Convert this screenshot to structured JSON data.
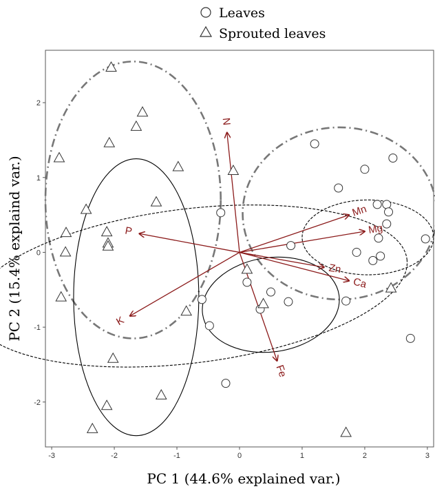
{
  "chart_data": {
    "type": "scatter",
    "subtype": "pca-biplot",
    "title": "",
    "xlabel": "PC 1 (44.6% explained var.)",
    "ylabel": "PC 2 (15.4% explaind var.)",
    "xlim": [
      -3.1,
      3.1
    ],
    "ylim": [
      -2.6,
      2.7
    ],
    "xticks": [
      -3,
      -2,
      -1,
      0,
      1,
      2,
      3
    ],
    "yticks": [
      -2,
      -1,
      0,
      1,
      2
    ],
    "grid": false,
    "legend_position": "top",
    "legend": [
      {
        "label": "Leaves",
        "marker": "circle"
      },
      {
        "label": "Sprouted leaves",
        "marker": "triangle"
      }
    ],
    "series": [
      {
        "name": "Leaves",
        "marker": "circle",
        "points": [
          [
            1.2,
            1.45
          ],
          [
            2.45,
            1.26
          ],
          [
            2.0,
            1.11
          ],
          [
            1.58,
            0.86
          ],
          [
            2.2,
            0.64
          ],
          [
            2.35,
            0.64
          ],
          [
            2.38,
            0.54
          ],
          [
            2.35,
            0.38
          ],
          [
            2.22,
            0.19
          ],
          [
            2.97,
            0.18
          ],
          [
            2.25,
            -0.05
          ],
          [
            2.13,
            -0.11
          ],
          [
            1.87,
            0.0
          ],
          [
            0.82,
            0.09
          ],
          [
            -0.3,
            0.53
          ],
          [
            0.12,
            -0.4
          ],
          [
            0.5,
            -0.53
          ],
          [
            0.33,
            -0.76
          ],
          [
            0.78,
            -0.66
          ],
          [
            1.7,
            -0.65
          ],
          [
            2.73,
            -1.15
          ],
          [
            -0.6,
            -0.63
          ],
          [
            -0.48,
            -0.98
          ],
          [
            -0.22,
            -1.75
          ]
        ]
      },
      {
        "name": "Sprouted leaves",
        "marker": "triangle",
        "points": [
          [
            -2.05,
            2.47
          ],
          [
            -1.55,
            1.87
          ],
          [
            -1.65,
            1.68
          ],
          [
            -2.08,
            1.46
          ],
          [
            -2.88,
            1.26
          ],
          [
            -0.98,
            1.14
          ],
          [
            -0.1,
            1.09
          ],
          [
            -1.33,
            0.67
          ],
          [
            -2.45,
            0.57
          ],
          [
            -2.77,
            0.26
          ],
          [
            -2.12,
            0.27
          ],
          [
            -2.1,
            0.12
          ],
          [
            -2.1,
            0.08
          ],
          [
            -2.78,
            0.0
          ],
          [
            0.12,
            -0.23
          ],
          [
            -2.85,
            -0.6
          ],
          [
            0.38,
            -0.69
          ],
          [
            -0.85,
            -0.79
          ],
          [
            2.42,
            -0.48
          ],
          [
            -2.02,
            -1.42
          ],
          [
            -1.25,
            -1.91
          ],
          [
            -2.12,
            -2.05
          ],
          [
            -2.35,
            -2.36
          ],
          [
            1.7,
            -2.41
          ]
        ]
      }
    ],
    "vectors": [
      {
        "label": "N",
        "x": -0.2,
        "y": 1.6
      },
      {
        "label": "Mn",
        "x": 1.75,
        "y": 0.5
      },
      {
        "label": "Mg",
        "x": 2.0,
        "y": 0.28
      },
      {
        "label": "P",
        "x": -1.6,
        "y": 0.25
      },
      {
        "label": "Zn",
        "x": 1.35,
        "y": -0.2
      },
      {
        "label": "Ca",
        "x": 1.75,
        "y": -0.38
      },
      {
        "label": "K",
        "x": -1.75,
        "y": -0.85
      },
      {
        "label": "Fe",
        "x": 0.6,
        "y": -1.45
      }
    ],
    "ellipses": [
      {
        "group": "Sprouted leaves",
        "style": "dashdot",
        "cx": -1.7,
        "cy": 0.7,
        "rx": 1.4,
        "ry": 1.85,
        "angle": 0
      },
      {
        "group": "Leaves",
        "style": "dashdot",
        "cx": 1.6,
        "cy": 0.52,
        "rx": 1.55,
        "ry": 1.15,
        "angle": 0
      },
      {
        "group": "Sprouted leaves",
        "style": "solid",
        "cx": -1.65,
        "cy": -0.6,
        "rx": 1.0,
        "ry": 1.85,
        "angle": 0
      },
      {
        "group": "Leaves",
        "style": "dashed",
        "cx": -0.8,
        "cy": -0.45,
        "rx": 3.5,
        "ry": 1.03,
        "angle": -7
      },
      {
        "group": "Leaves",
        "style": "dashed",
        "cx": 2.05,
        "cy": 0.2,
        "rx": 1.05,
        "ry": 0.5,
        "angle": 0
      },
      {
        "group": "Leaves",
        "style": "solid",
        "cx": 0.5,
        "cy": -0.7,
        "rx": 1.1,
        "ry": 0.63,
        "angle": -8
      }
    ],
    "colors": {
      "vector": "#8b1a1a",
      "ellipse_dashdot": "#777777",
      "ellipse_line": "#000000",
      "marker": "#333333",
      "frame": "#555555"
    }
  }
}
